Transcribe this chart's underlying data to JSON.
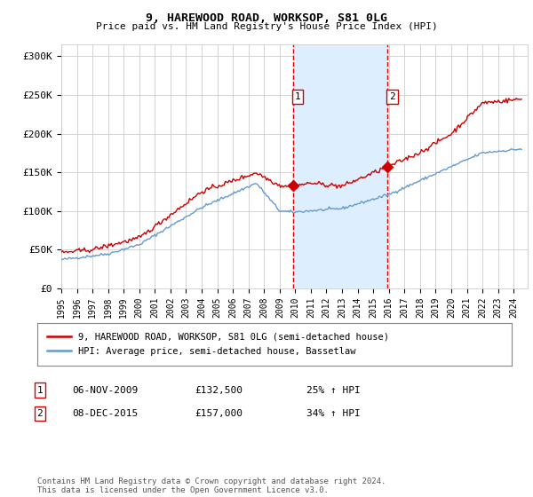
{
  "title": "9, HAREWOOD ROAD, WORKSOP, S81 0LG",
  "subtitle": "Price paid vs. HM Land Registry's House Price Index (HPI)",
  "ylabel_ticks": [
    "£0",
    "£50K",
    "£100K",
    "£150K",
    "£200K",
    "£250K",
    "£300K"
  ],
  "ytick_values": [
    0,
    50000,
    100000,
    150000,
    200000,
    250000,
    300000
  ],
  "ylim": [
    0,
    315000
  ],
  "x_start_year": 1995,
  "x_end_year": 2024,
  "sale1_date": 2009.85,
  "sale1_price": 132500,
  "sale1_label": "1",
  "sale2_date": 2015.92,
  "sale2_price": 157000,
  "sale2_label": "2",
  "hpi_line_color": "#6699cc",
  "price_line_color": "#cc0000",
  "shade_color": "#ddeeff",
  "dashed_line_color": "#dd0000",
  "legend_line1": "9, HAREWOOD ROAD, WORKSOP, S81 0LG (semi-detached house)",
  "legend_line2": "HPI: Average price, semi-detached house, Bassetlaw",
  "annotation1_box": "1",
  "annotation1_date": "06-NOV-2009",
  "annotation1_price": "£132,500",
  "annotation1_hpi": "25% ↑ HPI",
  "annotation2_box": "2",
  "annotation2_date": "08-DEC-2015",
  "annotation2_price": "£157,000",
  "annotation2_hpi": "34% ↑ HPI",
  "footer": "Contains HM Land Registry data © Crown copyright and database right 2024.\nThis data is licensed under the Open Government Licence v3.0.",
  "background_color": "#ffffff",
  "grid_color": "#cccccc"
}
